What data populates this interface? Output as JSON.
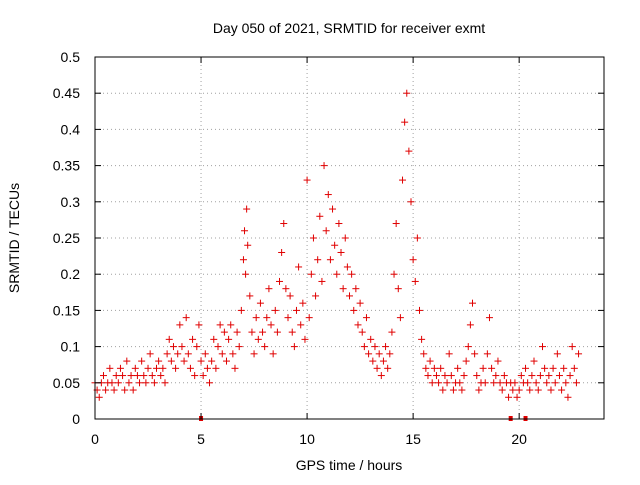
{
  "chart_data": {
    "type": "scatter",
    "title": "Day 050 of 2021, SRMTID for receiver exmt",
    "xlabel": "GPS time / hours",
    "ylabel": "SRMTID / TECUs",
    "xlim": [
      0,
      24
    ],
    "ylim": [
      0,
      0.5
    ],
    "grid": true,
    "marker": "+",
    "color": "#e00000",
    "x_ticks": [
      {
        "v": 0,
        "label": "0"
      },
      {
        "v": 5,
        "label": "5"
      },
      {
        "v": 10,
        "label": "10"
      },
      {
        "v": 15,
        "label": "15"
      },
      {
        "v": 20,
        "label": "20"
      }
    ],
    "y_ticks": [
      {
        "v": 0,
        "label": "0"
      },
      {
        "v": 0.05,
        "label": "0.05"
      },
      {
        "v": 0.1,
        "label": "0.1"
      },
      {
        "v": 0.15,
        "label": "0.15"
      },
      {
        "v": 0.2,
        "label": "0.2"
      },
      {
        "v": 0.25,
        "label": "0.25"
      },
      {
        "v": 0.3,
        "label": "0.3"
      },
      {
        "v": 0.35,
        "label": "0.35"
      },
      {
        "v": 0.4,
        "label": "0.4"
      },
      {
        "v": 0.45,
        "label": "0.45"
      },
      {
        "v": 0.5,
        "label": "0.5"
      }
    ],
    "flagged_x": [
      5.0,
      19.6,
      20.3
    ],
    "points": [
      [
        0.0,
        0.05
      ],
      [
        0.1,
        0.04
      ],
      [
        0.2,
        0.03
      ],
      [
        0.3,
        0.05
      ],
      [
        0.4,
        0.06
      ],
      [
        0.5,
        0.04
      ],
      [
        0.6,
        0.05
      ],
      [
        0.7,
        0.07
      ],
      [
        0.8,
        0.05
      ],
      [
        0.9,
        0.04
      ],
      [
        1.0,
        0.06
      ],
      [
        1.1,
        0.05
      ],
      [
        1.2,
        0.07
      ],
      [
        1.3,
        0.06
      ],
      [
        1.4,
        0.04
      ],
      [
        1.5,
        0.08
      ],
      [
        1.6,
        0.05
      ],
      [
        1.7,
        0.06
      ],
      [
        1.8,
        0.04
      ],
      [
        1.9,
        0.07
      ],
      [
        2.0,
        0.06
      ],
      [
        2.1,
        0.05
      ],
      [
        2.2,
        0.08
      ],
      [
        2.3,
        0.06
      ],
      [
        2.4,
        0.05
      ],
      [
        2.5,
        0.07
      ],
      [
        2.6,
        0.09
      ],
      [
        2.7,
        0.06
      ],
      [
        2.8,
        0.05
      ],
      [
        2.9,
        0.07
      ],
      [
        3.0,
        0.08
      ],
      [
        3.1,
        0.06
      ],
      [
        3.2,
        0.07
      ],
      [
        3.3,
        0.05
      ],
      [
        3.4,
        0.09
      ],
      [
        3.5,
        0.11
      ],
      [
        3.6,
        0.08
      ],
      [
        3.7,
        0.1
      ],
      [
        3.8,
        0.07
      ],
      [
        3.9,
        0.09
      ],
      [
        4.0,
        0.13
      ],
      [
        4.1,
        0.1
      ],
      [
        4.2,
        0.08
      ],
      [
        4.3,
        0.14
      ],
      [
        4.4,
        0.09
      ],
      [
        4.5,
        0.07
      ],
      [
        4.6,
        0.11
      ],
      [
        4.7,
        0.06
      ],
      [
        4.8,
        0.1
      ],
      [
        4.9,
        0.13
      ],
      [
        5.0,
        0.08
      ],
      [
        5.1,
        0.06
      ],
      [
        5.2,
        0.09
      ],
      [
        5.3,
        0.07
      ],
      [
        5.4,
        0.05
      ],
      [
        5.5,
        0.08
      ],
      [
        5.6,
        0.11
      ],
      [
        5.7,
        0.07
      ],
      [
        5.8,
        0.1
      ],
      [
        5.9,
        0.13
      ],
      [
        6.0,
        0.09
      ],
      [
        6.1,
        0.12
      ],
      [
        6.2,
        0.08
      ],
      [
        6.3,
        0.11
      ],
      [
        6.4,
        0.13
      ],
      [
        6.5,
        0.09
      ],
      [
        6.6,
        0.07
      ],
      [
        6.7,
        0.12
      ],
      [
        6.8,
        0.1
      ],
      [
        6.9,
        0.15
      ],
      [
        7.0,
        0.22
      ],
      [
        7.05,
        0.26
      ],
      [
        7.1,
        0.2
      ],
      [
        7.15,
        0.29
      ],
      [
        7.2,
        0.24
      ],
      [
        7.3,
        0.17
      ],
      [
        7.4,
        0.12
      ],
      [
        7.5,
        0.09
      ],
      [
        7.6,
        0.14
      ],
      [
        7.7,
        0.11
      ],
      [
        7.8,
        0.16
      ],
      [
        7.9,
        0.12
      ],
      [
        8.0,
        0.1
      ],
      [
        8.1,
        0.14
      ],
      [
        8.2,
        0.18
      ],
      [
        8.3,
        0.13
      ],
      [
        8.4,
        0.09
      ],
      [
        8.5,
        0.15
      ],
      [
        8.6,
        0.12
      ],
      [
        8.7,
        0.19
      ],
      [
        8.8,
        0.23
      ],
      [
        8.9,
        0.27
      ],
      [
        9.0,
        0.18
      ],
      [
        9.1,
        0.14
      ],
      [
        9.2,
        0.17
      ],
      [
        9.3,
        0.12
      ],
      [
        9.4,
        0.1
      ],
      [
        9.5,
        0.15
      ],
      [
        9.6,
        0.21
      ],
      [
        9.7,
        0.13
      ],
      [
        9.8,
        0.16
      ],
      [
        9.9,
        0.11
      ],
      [
        10.0,
        0.33
      ],
      [
        10.1,
        0.14
      ],
      [
        10.2,
        0.2
      ],
      [
        10.3,
        0.25
      ],
      [
        10.4,
        0.17
      ],
      [
        10.5,
        0.22
      ],
      [
        10.6,
        0.28
      ],
      [
        10.7,
        0.19
      ],
      [
        10.8,
        0.35
      ],
      [
        10.9,
        0.26
      ],
      [
        11.0,
        0.31
      ],
      [
        11.1,
        0.22
      ],
      [
        11.2,
        0.29
      ],
      [
        11.3,
        0.24
      ],
      [
        11.4,
        0.2
      ],
      [
        11.5,
        0.27
      ],
      [
        11.6,
        0.23
      ],
      [
        11.7,
        0.18
      ],
      [
        11.8,
        0.25
      ],
      [
        11.9,
        0.21
      ],
      [
        12.0,
        0.17
      ],
      [
        12.1,
        0.2
      ],
      [
        12.2,
        0.15
      ],
      [
        12.3,
        0.18
      ],
      [
        12.4,
        0.13
      ],
      [
        12.5,
        0.16
      ],
      [
        12.6,
        0.12
      ],
      [
        12.7,
        0.1
      ],
      [
        12.8,
        0.14
      ],
      [
        12.9,
        0.09
      ],
      [
        13.0,
        0.11
      ],
      [
        13.1,
        0.08
      ],
      [
        13.2,
        0.1
      ],
      [
        13.3,
        0.07
      ],
      [
        13.4,
        0.09
      ],
      [
        13.5,
        0.06
      ],
      [
        13.6,
        0.08
      ],
      [
        13.7,
        0.1
      ],
      [
        13.8,
        0.07
      ],
      [
        13.9,
        0.09
      ],
      [
        14.0,
        0.12
      ],
      [
        14.1,
        0.2
      ],
      [
        14.2,
        0.27
      ],
      [
        14.3,
        0.18
      ],
      [
        14.4,
        0.14
      ],
      [
        14.5,
        0.33
      ],
      [
        14.6,
        0.41
      ],
      [
        14.7,
        0.45
      ],
      [
        14.8,
        0.37
      ],
      [
        14.9,
        0.3
      ],
      [
        15.0,
        0.22
      ],
      [
        15.1,
        0.19
      ],
      [
        15.2,
        0.25
      ],
      [
        15.3,
        0.15
      ],
      [
        15.4,
        0.11
      ],
      [
        15.5,
        0.09
      ],
      [
        15.6,
        0.07
      ],
      [
        15.7,
        0.06
      ],
      [
        15.8,
        0.08
      ],
      [
        15.9,
        0.05
      ],
      [
        16.0,
        0.07
      ],
      [
        16.1,
        0.06
      ],
      [
        16.2,
        0.05
      ],
      [
        16.3,
        0.07
      ],
      [
        16.4,
        0.04
      ],
      [
        16.5,
        0.06
      ],
      [
        16.6,
        0.05
      ],
      [
        16.7,
        0.09
      ],
      [
        16.8,
        0.06
      ],
      [
        16.9,
        0.04
      ],
      [
        17.0,
        0.05
      ],
      [
        17.1,
        0.07
      ],
      [
        17.2,
        0.05
      ],
      [
        17.3,
        0.04
      ],
      [
        17.4,
        0.06
      ],
      [
        17.5,
        0.08
      ],
      [
        17.6,
        0.1
      ],
      [
        17.7,
        0.13
      ],
      [
        17.8,
        0.16
      ],
      [
        17.9,
        0.09
      ],
      [
        18.0,
        0.06
      ],
      [
        18.1,
        0.04
      ],
      [
        18.2,
        0.05
      ],
      [
        18.3,
        0.07
      ],
      [
        18.4,
        0.05
      ],
      [
        18.5,
        0.09
      ],
      [
        18.6,
        0.14
      ],
      [
        18.7,
        0.07
      ],
      [
        18.8,
        0.05
      ],
      [
        18.9,
        0.06
      ],
      [
        19.0,
        0.08
      ],
      [
        19.1,
        0.05
      ],
      [
        19.2,
        0.04
      ],
      [
        19.3,
        0.06
      ],
      [
        19.4,
        0.05
      ],
      [
        19.5,
        0.03
      ],
      [
        19.6,
        0.05
      ],
      [
        19.7,
        0.04
      ],
      [
        19.8,
        0.05
      ],
      [
        19.9,
        0.03
      ],
      [
        20.0,
        0.04
      ],
      [
        20.1,
        0.06
      ],
      [
        20.2,
        0.05
      ],
      [
        20.3,
        0.07
      ],
      [
        20.4,
        0.05
      ],
      [
        20.5,
        0.04
      ],
      [
        20.6,
        0.06
      ],
      [
        20.7,
        0.08
      ],
      [
        20.8,
        0.05
      ],
      [
        20.9,
        0.04
      ],
      [
        21.0,
        0.06
      ],
      [
        21.1,
        0.1
      ],
      [
        21.2,
        0.07
      ],
      [
        21.3,
        0.05
      ],
      [
        21.4,
        0.06
      ],
      [
        21.5,
        0.04
      ],
      [
        21.6,
        0.07
      ],
      [
        21.7,
        0.05
      ],
      [
        21.8,
        0.09
      ],
      [
        21.9,
        0.06
      ],
      [
        22.0,
        0.04
      ],
      [
        22.1,
        0.07
      ],
      [
        22.2,
        0.05
      ],
      [
        22.3,
        0.03
      ],
      [
        22.4,
        0.06
      ],
      [
        22.5,
        0.1
      ],
      [
        22.6,
        0.07
      ],
      [
        22.7,
        0.05
      ],
      [
        22.8,
        0.09
      ]
    ]
  }
}
